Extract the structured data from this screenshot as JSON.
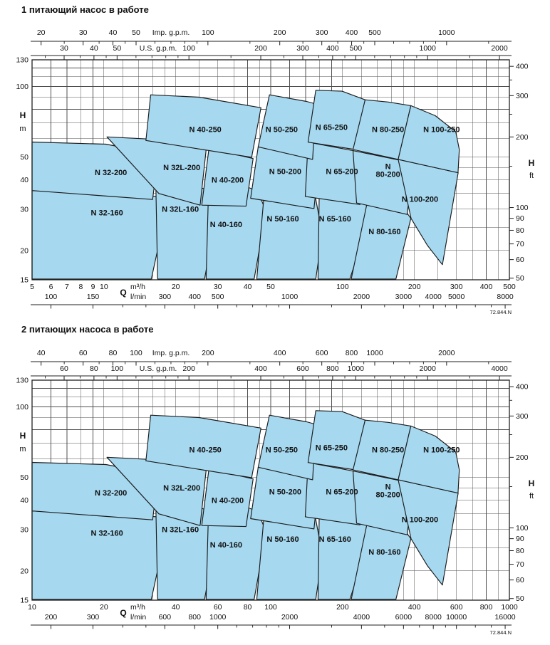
{
  "page": {
    "title_chart1": "1 питающий насос в работе",
    "title_chart2": "2 питающих насоса в работе",
    "diagram_code": "72.844.N"
  },
  "units": {
    "imp": "Imp. g.p.m.",
    "us": "U.S. g.p.m.",
    "q": "Q",
    "m3h": "m³/h",
    "lmin": "l/min",
    "head": "H",
    "meters": "m",
    "feet": "ft"
  },
  "style": {
    "zone_fill": "#a6d8ef",
    "zone_stroke": "#1b1b1b",
    "grid_color": "#4f4f4f",
    "axis_color": "#1f1f1f",
    "text_color": "#111111"
  },
  "chart_data": {
    "type": "area",
    "title": "Pump selection coverage chart (N series), H [m/ft] vs Q [m3/h, l/min, gpm], log-log",
    "h_axis": {
      "range_m": [
        15,
        130
      ],
      "left_labels_m": [
        130,
        100,
        50,
        40,
        30,
        20,
        15
      ],
      "grid_m": [
        20,
        25,
        30,
        35,
        40,
        45,
        50,
        60,
        70,
        80,
        90,
        100,
        110,
        120
      ],
      "right_labels_ft": [
        400,
        300,
        200,
        100,
        90,
        80,
        70,
        60,
        50
      ],
      "right_minor_ft": [
        350,
        250,
        150
      ],
      "ft_per_m": 3.2808
    },
    "charts": [
      {
        "title": "1 питающий насос в работе",
        "code": "72.844.N",
        "q_multiplier": 1,
        "q_range_m3h": [
          5,
          500
        ],
        "imp_gpm": {
          "factor_per_m3h": 3.666,
          "labels": [
            20,
            30,
            40,
            50,
            100,
            200,
            300,
            400,
            500,
            1000
          ],
          "minor": [
            25,
            35,
            45,
            60,
            70,
            80,
            90,
            150,
            250,
            350,
            450,
            600,
            700,
            800,
            900,
            1500
          ]
        },
        "us_gpm": {
          "factor_per_m3h": 4.403,
          "labels": [
            30,
            40,
            50,
            100,
            200,
            300,
            400,
            500,
            1000,
            2000
          ],
          "minor": [
            25,
            35,
            45,
            60,
            70,
            80,
            90,
            150,
            250,
            350,
            450,
            600,
            700,
            800,
            900,
            1500
          ]
        },
        "m3h_labels": [
          5,
          6,
          7,
          8,
          9,
          10,
          20,
          30,
          40,
          50,
          100,
          200,
          300,
          400,
          500
        ],
        "lmin": {
          "factor_per_m3h": 16.667,
          "labels": [
            100,
            150,
            300,
            400,
            500,
            1000,
            2000,
            3000,
            4000,
            5000,
            8000
          ],
          "minor": [
            200,
            250,
            600,
            700,
            800,
            900,
            1500,
            2500,
            3500,
            4500,
            6000,
            7000
          ]
        }
      },
      {
        "title": "2 питающих насоса в работе",
        "code": "72.844.N",
        "q_multiplier": 2,
        "q_range_m3h": [
          10,
          1000
        ],
        "imp_gpm": {
          "factor_per_m3h": 3.666,
          "labels": [
            40,
            60,
            80,
            100,
            200,
            400,
            600,
            800,
            1000,
            2000
          ],
          "minor": [
            50,
            70,
            90,
            120,
            140,
            160,
            180,
            300,
            500,
            700,
            900,
            1200,
            1400,
            1600,
            1800,
            3000
          ]
        },
        "us_gpm": {
          "factor_per_m3h": 4.403,
          "labels": [
            60,
            80,
            100,
            200,
            400,
            600,
            800,
            1000,
            2000,
            4000
          ],
          "minor": [
            50,
            70,
            90,
            120,
            140,
            160,
            180,
            300,
            500,
            700,
            900,
            1200,
            1400,
            1600,
            1800,
            3000
          ]
        },
        "m3h_labels": [
          10,
          20,
          40,
          60,
          80,
          100,
          200,
          400,
          600,
          800,
          1000
        ],
        "lmin": {
          "factor_per_m3h": 16.667,
          "labels": [
            200,
            300,
            600,
            800,
            1000,
            2000,
            4000,
            6000,
            8000,
            10000,
            16000
          ],
          "minor": [
            400,
            500,
            1200,
            1400,
            1600,
            1800,
            3000,
            5000,
            7000,
            9000,
            12000,
            14000
          ]
        }
      }
    ],
    "v_grid_m3h_chart1": [
      6,
      7,
      8,
      9,
      10,
      12,
      14,
      16,
      18,
      20,
      25,
      30,
      35,
      40,
      45,
      50,
      60,
      70,
      80,
      90,
      100,
      120,
      140,
      160,
      180,
      200,
      250,
      300,
      350,
      400,
      450
    ],
    "zones_note": "Zone outlines in chart-1 units (Q m3/h, H m); for chart 2 multiply Q by q_multiplier=2 (two pumps in parallel), H unchanged.",
    "zones": [
      {
        "label": "N 32-160",
        "label_q": 10.3,
        "label_h": 28.2,
        "points": [
          [
            5,
            36
          ],
          [
            10.3,
            35
          ],
          [
            16.8,
            34
          ],
          [
            18.1,
            28.7
          ],
          [
            15.8,
            15.1
          ],
          [
            5,
            15.1
          ]
        ]
      },
      {
        "label": "N 32L-160",
        "label_q": 20.9,
        "label_h": 29.2,
        "points": [
          [
            16.5,
            38.4
          ],
          [
            25.1,
            37.3
          ],
          [
            27.9,
            35.8
          ],
          [
            29.8,
            29.7
          ],
          [
            26.4,
            15.1
          ],
          [
            16.8,
            15.1
          ]
        ]
      },
      {
        "label": "N 40-160",
        "label_q": 32.5,
        "label_h": 25.2,
        "points": [
          [
            27.5,
            39.2
          ],
          [
            38,
            38
          ],
          [
            44.2,
            35.8
          ],
          [
            47.8,
            29.2
          ],
          [
            42.6,
            15.1
          ],
          [
            26.8,
            15.1
          ]
        ]
      },
      {
        "label": "N 50-160",
        "label_q": 56.2,
        "label_h": 26.6,
        "points": [
          [
            47.5,
            40
          ],
          [
            66.2,
            38.4
          ],
          [
            75.9,
            36.3
          ],
          [
            82.3,
            23.5
          ],
          [
            77.2,
            15.1
          ],
          [
            43.7,
            15.1
          ]
        ]
      },
      {
        "label": "N 65-160",
        "label_q": 93,
        "label_h": 26.6,
        "points": [
          [
            80,
            41.1
          ],
          [
            107.2,
            39.7
          ],
          [
            122.9,
            37.9
          ],
          [
            133.5,
            29.7
          ],
          [
            107.2,
            15.1
          ],
          [
            78.9,
            15.1
          ]
        ]
      },
      {
        "label": "N 80-160",
        "label_q": 150,
        "label_h": 23.5,
        "points": [
          [
            131.6,
            38.4
          ],
          [
            163.6,
            34.8
          ],
          [
            193.2,
            27.4
          ],
          [
            167.3,
            15.1
          ],
          [
            108.7,
            15.1
          ]
        ]
      },
      {
        "label": "N 32-200",
        "label_q": 10.7,
        "label_h": 41.9,
        "points": [
          [
            5,
            58
          ],
          [
            10.2,
            56.8
          ],
          [
            16.9,
            51.4
          ],
          [
            16,
            33
          ],
          [
            5,
            36
          ]
        ]
      },
      {
        "label": "N 32L-200",
        "label_q": 21.2,
        "label_h": 44,
        "points": [
          [
            10.3,
            61
          ],
          [
            15,
            59.8
          ],
          [
            26.8,
            53.6
          ],
          [
            25.3,
            31.2
          ],
          [
            17,
            35
          ]
        ]
      },
      {
        "label": "N 40-200",
        "label_q": 33,
        "label_h": 38.9,
        "points": [
          [
            27.5,
            53.6
          ],
          [
            35,
            51.5
          ],
          [
            42.2,
            49.3
          ],
          [
            39.4,
            30.9
          ],
          [
            25.7,
            31.2
          ]
        ]
      },
      {
        "label": "N 50-200",
        "label_q": 57.5,
        "label_h": 42.4,
        "points": [
          [
            44.3,
            55.3
          ],
          [
            70.7,
            52.2
          ],
          [
            80,
            50.2
          ],
          [
            75.9,
            30.2
          ],
          [
            41.2,
            33.4
          ]
        ]
      },
      {
        "label": "N 65-200",
        "label_q": 99.4,
        "label_h": 42.4,
        "points": [
          [
            71.7,
            57.9
          ],
          [
            110.6,
            53.3
          ],
          [
            126.4,
            51.1
          ],
          [
            118.3,
            31.4
          ],
          [
            69.8,
            34
          ]
        ]
      },
      {
        "label": "N 80-200",
        "label_q": 155,
        "label_h": 44.5,
        "two_line": true,
        "points": [
          [
            110.6,
            53.3
          ],
          [
            171,
            48.7
          ],
          [
            197.3,
            46.4
          ],
          [
            186.5,
            28.5
          ],
          [
            114.5,
            31.9
          ]
        ]
      },
      {
        "label": "N 100-200",
        "label_q": 211,
        "label_h": 32.2,
        "points": [
          [
            171,
            48.9
          ],
          [
            305,
            42.9
          ],
          [
            262,
            17.4
          ],
          [
            227,
            21
          ],
          [
            193.7,
            27.4
          ]
        ]
      },
      {
        "label": "N 40-250",
        "label_q": 26.6,
        "label_h": 64,
        "points": [
          [
            15.7,
            92.2
          ],
          [
            25.1,
            90.1
          ],
          [
            45.5,
            81.2
          ],
          [
            41.6,
            49.9
          ],
          [
            15,
            58.9
          ]
        ]
      },
      {
        "label": "N 50-250",
        "label_q": 55.6,
        "label_h": 64,
        "points": [
          [
            49.4,
            92.2
          ],
          [
            70.7,
            86.4
          ],
          [
            77.2,
            84.3
          ],
          [
            74.9,
            48.9
          ],
          [
            44.3,
            55.3
          ]
        ]
      },
      {
        "label": "N 65-250",
        "label_q": 89.9,
        "label_h": 65.3,
        "points": [
          [
            77.2,
            96.4
          ],
          [
            99.5,
            95.5
          ],
          [
            124.3,
            87.8
          ],
          [
            112.7,
            53.9
          ],
          [
            71.7,
            57.9
          ]
        ]
      },
      {
        "label": "N 80-250",
        "label_q": 155,
        "label_h": 64,
        "points": [
          [
            124.3,
            87.8
          ],
          [
            155.4,
            85.9
          ],
          [
            193.2,
            82.9
          ],
          [
            171,
            48.9
          ],
          [
            110.6,
            53.9
          ]
        ]
      },
      {
        "label": "N 100-250",
        "label_q": 260,
        "label_h": 64,
        "points": [
          [
            193.2,
            82.9
          ],
          [
            244.6,
            75.1
          ],
          [
            297.9,
            64.2
          ],
          [
            308.5,
            53.9
          ],
          [
            304.6,
            42.9
          ],
          [
            171,
            48.9
          ]
        ]
      }
    ]
  }
}
